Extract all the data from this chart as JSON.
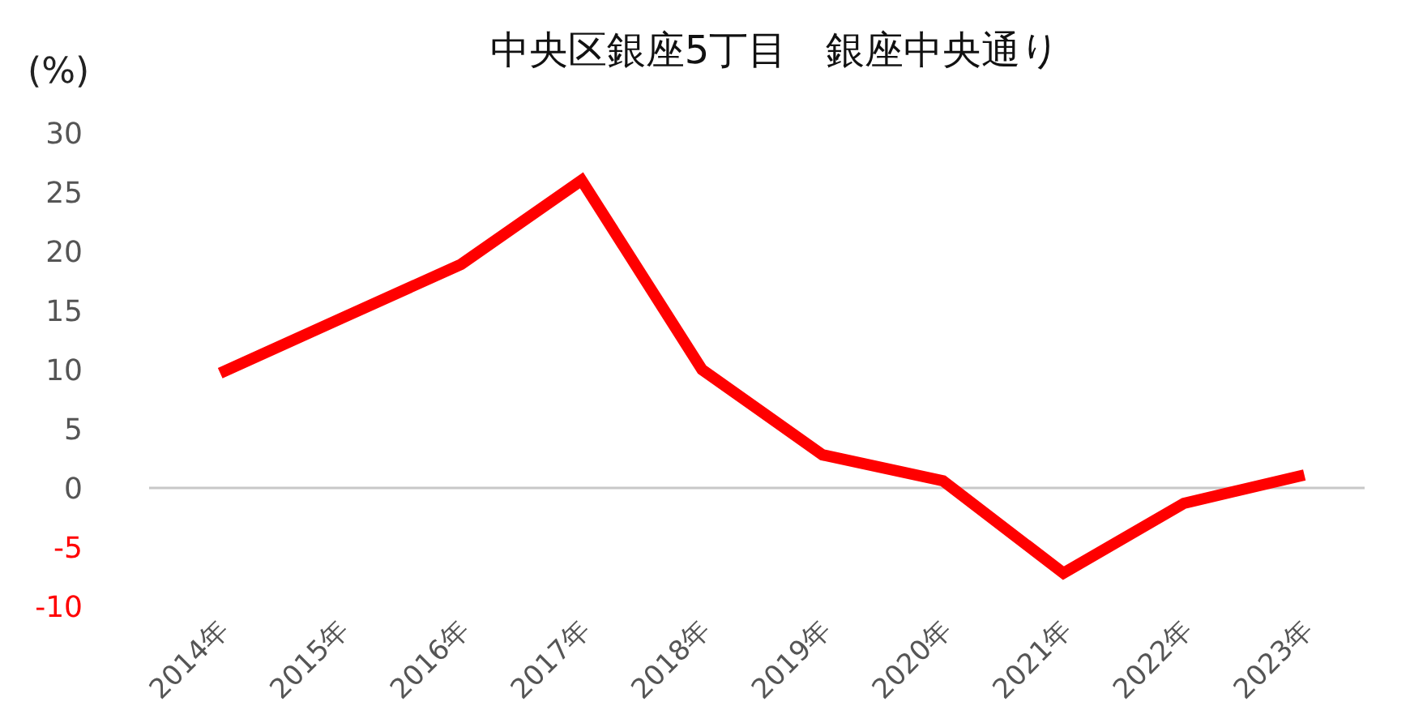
{
  "chart_data": {
    "type": "line",
    "title": "中央区銀座5丁目　銀座中央通り",
    "ylabel": "(%)",
    "categories": [
      "2014年",
      "2015年",
      "2016年",
      "2017年",
      "2018年",
      "2019年",
      "2020年",
      "2021年",
      "2022年",
      "2023年"
    ],
    "series": [
      {
        "color": "#ff0000",
        "values": [
          9.7,
          14.3,
          18.9,
          26.0,
          10.0,
          2.8,
          0.6,
          -7.2,
          -1.3,
          1.1
        ]
      }
    ],
    "ylim": [
      -10,
      30
    ],
    "yticks": [
      -10,
      -5,
      0,
      5,
      10,
      15,
      20,
      25,
      30
    ],
    "grid": false,
    "marker": "none",
    "line_style": "solid",
    "ref_lines": [
      {
        "axis": "y",
        "value": 0,
        "color": "#c8c8c8"
      }
    ]
  }
}
